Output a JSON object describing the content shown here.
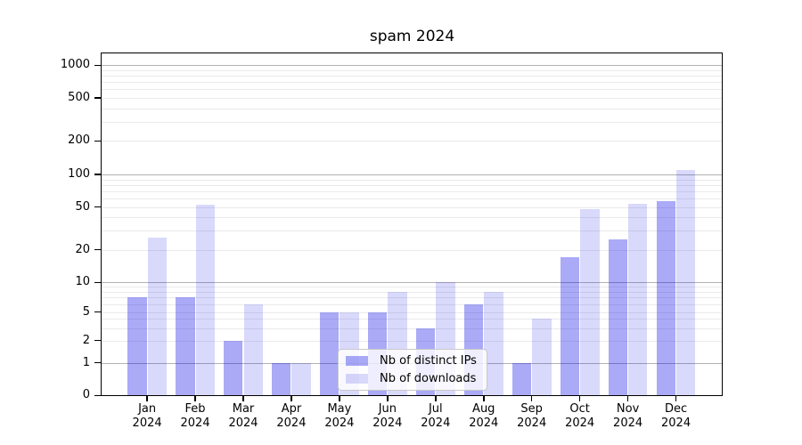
{
  "chart_data": {
    "type": "bar",
    "title": "spam 2024",
    "categories": [
      "Jan 2024",
      "Feb 2024",
      "Mar 2024",
      "Apr 2024",
      "May 2024",
      "Jun 2024",
      "Jul 2024",
      "Aug 2024",
      "Sep 2024",
      "Oct 2024",
      "Nov 2024",
      "Dec 2024"
    ],
    "series": [
      {
        "name": "Nb of distinct IPs",
        "color": "#0000e6",
        "opacity": 0.335,
        "values": [
          7,
          7,
          2,
          1,
          5,
          5,
          3,
          6,
          1,
          17,
          25,
          57
        ]
      },
      {
        "name": "Nb of downloads",
        "color": "#0000e6",
        "opacity": 0.15,
        "values": [
          26,
          53,
          6,
          1,
          5,
          8,
          10,
          8,
          4,
          48,
          54,
          110
        ]
      }
    ],
    "yticks": [
      0,
      1,
      2,
      5,
      10,
      20,
      50,
      100,
      200,
      500,
      1000
    ],
    "y_scale": "log-like (0 baseline, log above 1)",
    "grid": {
      "major": true,
      "minor": true
    },
    "legend_position": "lower center",
    "colors": {
      "bar_ips_rendered": "#aaaaf5",
      "bar_downloads_rendered": "#d9d9f7",
      "major_grid": "#b2b2b2",
      "minor_grid": "#eaeaea",
      "axis": "#000000"
    }
  }
}
